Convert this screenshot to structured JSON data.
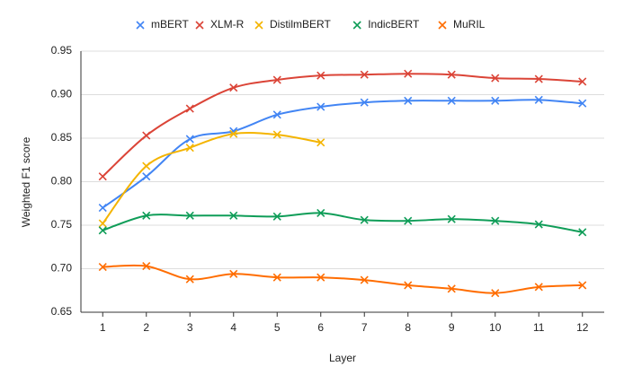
{
  "chart_data": {
    "type": "line",
    "xlabel": "Layer",
    "ylabel": "Weighted F1 score",
    "x": [
      1,
      2,
      3,
      4,
      5,
      6,
      7,
      8,
      9,
      10,
      11,
      12
    ],
    "xlim": [
      0.5,
      12.5
    ],
    "xticks": [
      1,
      2,
      3,
      4,
      5,
      6,
      7,
      8,
      9,
      10,
      11,
      12
    ],
    "ylim": [
      0.65,
      0.95
    ],
    "yticks": [
      0.65,
      {
        "value": 0.7,
        "label": "0.70"
      },
      0.75,
      {
        "value": 0.8,
        "label": "0.80"
      },
      0.85,
      {
        "value": 0.9,
        "label": "0.90"
      },
      0.95
    ],
    "grid": true,
    "legend": "top",
    "smooth": true,
    "series": [
      {
        "name": "mBERT",
        "color": "#4285f4",
        "values": [
          0.77,
          0.806,
          0.849,
          0.858,
          0.877,
          0.886,
          0.891,
          0.893,
          0.893,
          0.893,
          0.894,
          0.89
        ]
      },
      {
        "name": "XLM-R",
        "color": "#db4437",
        "values": [
          0.806,
          0.853,
          0.884,
          0.908,
          0.917,
          0.922,
          0.923,
          0.924,
          0.923,
          0.919,
          0.918,
          0.915
        ]
      },
      {
        "name": "DistilmBERT",
        "color": "#f4b400",
        "values": [
          0.752,
          0.818,
          0.839,
          0.855,
          0.854,
          0.845,
          null,
          null,
          null,
          null,
          null,
          null
        ]
      },
      {
        "name": "IndicBERT",
        "color": "#0f9d58",
        "values": [
          0.744,
          0.761,
          0.761,
          0.761,
          0.76,
          0.764,
          0.756,
          0.755,
          0.757,
          0.755,
          0.751,
          0.742
        ]
      },
      {
        "name": "MuRIL",
        "color": "#ff6d01",
        "values": [
          0.702,
          0.703,
          0.688,
          0.694,
          0.69,
          0.69,
          0.687,
          0.681,
          0.677,
          0.672,
          0.679,
          0.681
        ]
      }
    ]
  }
}
